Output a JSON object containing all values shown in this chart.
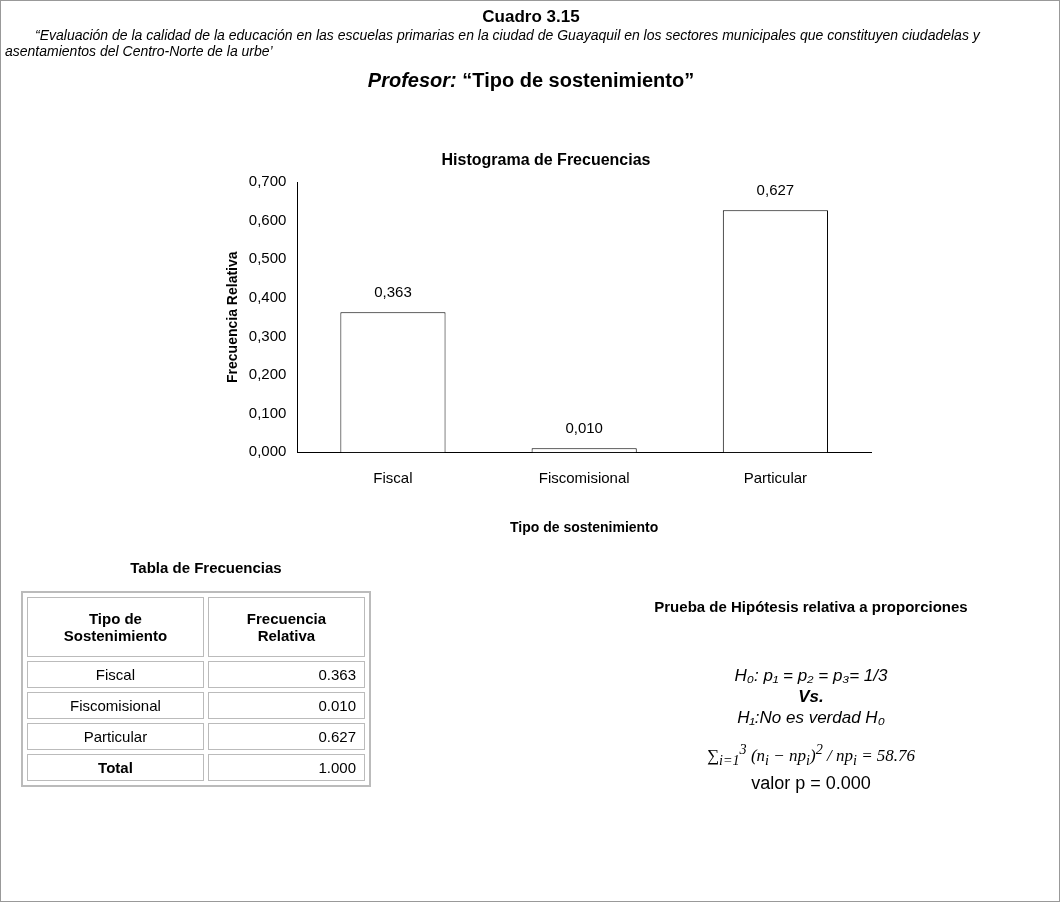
{
  "chart_data": {
    "type": "bar",
    "title": "Histograma de Frecuencias",
    "xlabel": "Tipo de sostenimiento",
    "ylabel": "Frecuencia Relativa",
    "categories": [
      "Fiscal",
      "Fiscomisional",
      "Particular"
    ],
    "values": [
      0.363,
      0.01,
      0.627
    ],
    "value_labels": [
      "0,363",
      "0,010",
      "0,627"
    ],
    "color": "#ffffff",
    "ylim": [
      0,
      0.7
    ],
    "yticks": [
      {
        "value": 0,
        "label": "0,000"
      },
      {
        "value": 0.1,
        "label": "0,100"
      },
      {
        "value": 0.2,
        "label": "0,200"
      },
      {
        "value": 0.3,
        "label": "0,300"
      },
      {
        "value": 0.4,
        "label": "0,400"
      },
      {
        "value": 0.5,
        "label": "0,500"
      },
      {
        "value": 0.6,
        "label": "0,600"
      },
      {
        "value": 0.7,
        "label": "0,700"
      }
    ],
    "grid": false,
    "legend": false,
    "annotations": [
      "Cuadro 3.15",
      "“Evaluación de la calidad de la educación en las escuelas primarias en la ciudad de Guayaquil en los sectores municipales que constituyen ciudadelas y  asentamientos del Centro-Norte de la urbe’",
      "Profesor:  “Tipo de sostenimiento”",
      "Tabla de Frecuencias",
      "Tipo de Sostenimiento",
      "Frecuencia Relativa",
      "Fiscal",
      "0.363",
      "Fiscomisional",
      "0.010",
      "Particular",
      "0.627",
      "Total",
      "1.000",
      "Prueba de Hipótesis relativa a proporciones",
      "H₀:  p₁ = p₂ = p₃= 1/3",
      "Vs.",
      "H₁:No es verdad H₀",
      "∑$_{i=1}$$^{3}$ (n$_{i}$ − np$_{i}$)$^{2}$ / np$_{i}$ = 58.76",
      "valor p = 0.000"
    ]
  }
}
